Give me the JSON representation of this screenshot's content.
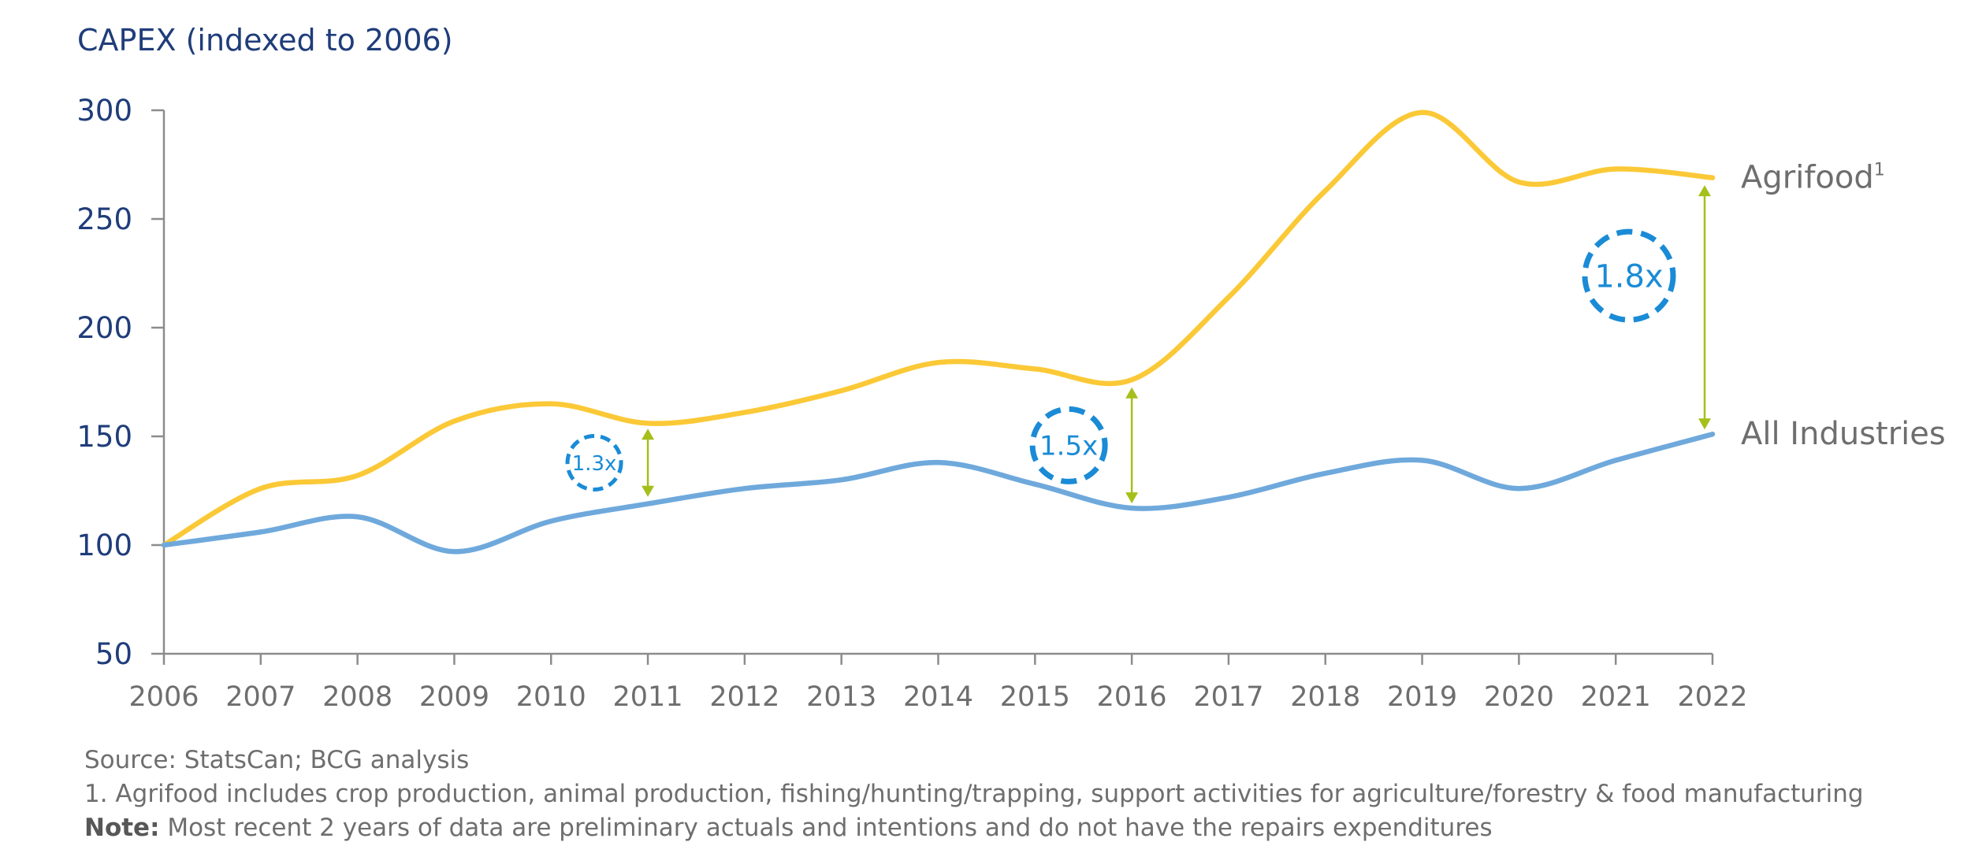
{
  "chart_data": {
    "type": "line",
    "title": "CAPEX (indexed to 2006)",
    "x": [
      2006,
      2007,
      2008,
      2009,
      2010,
      2011,
      2012,
      2013,
      2014,
      2015,
      2016,
      2017,
      2018,
      2019,
      2020,
      2021,
      2022
    ],
    "series": [
      {
        "name": "Agrifood",
        "label_superscript": "1",
        "color": "#fbc937",
        "values": [
          100,
          126,
          132,
          157,
          165,
          156,
          161,
          171,
          184,
          181,
          176,
          214,
          263,
          299,
          267,
          273,
          269
        ]
      },
      {
        "name": "All Industries",
        "color": "#6fa9dc",
        "values": [
          100,
          106,
          113,
          97,
          111,
          119,
          126,
          130,
          138,
          128,
          117,
          122,
          133,
          139,
          126,
          139,
          151
        ]
      }
    ],
    "xlim": [
      2006,
      2022
    ],
    "ylim": [
      50,
      300
    ],
    "yticks": [
      50,
      100,
      150,
      200,
      250,
      300
    ],
    "xticks": [
      2006,
      2007,
      2008,
      2009,
      2010,
      2011,
      2012,
      2013,
      2014,
      2015,
      2016,
      2017,
      2018,
      2019,
      2020,
      2021,
      2022
    ],
    "grid": false,
    "legend": "direct labels at right end of lines",
    "annotations": [
      {
        "text": "1.3x",
        "x": 2011,
        "from": 120,
        "to": 155
      },
      {
        "text": "1.5x",
        "x": 2016,
        "from": 117,
        "to": 174
      },
      {
        "text": "1.8x",
        "x": 2022,
        "from": 151,
        "to": 267
      }
    ],
    "colors": {
      "axis_text": "#1f3d7a",
      "annotation": "#1a8bd6",
      "arrow": "#a6bf1a",
      "axis_line": "#8c8c8c"
    }
  },
  "footnotes": {
    "source": "Source: StatsCan; BCG analysis",
    "footnote1": "1. Agrifood includes crop production, animal production, fishing/hunting/trapping, support activities for agriculture/forestry & food manufacturing",
    "note_label": "Note:",
    "note_text": " Most recent 2 years of data are preliminary actuals and intentions and do not have the repairs expenditures"
  }
}
